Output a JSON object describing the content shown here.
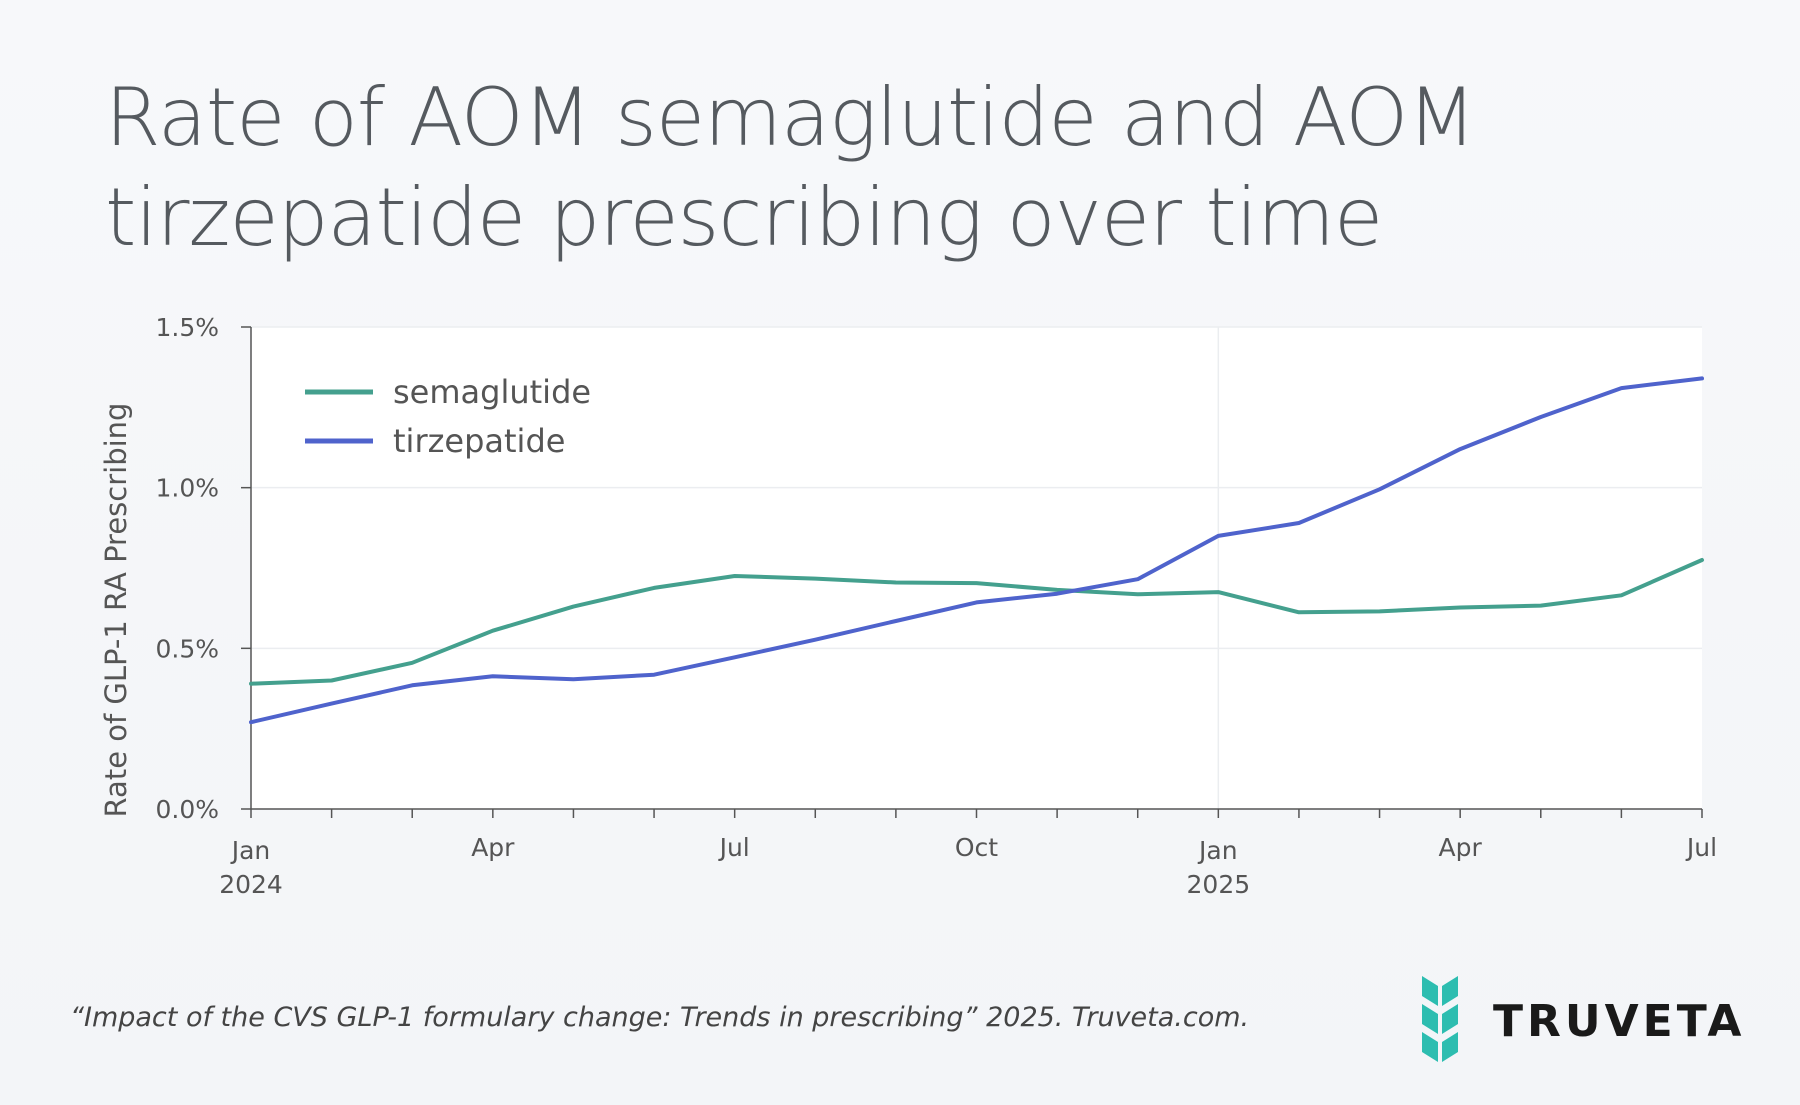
{
  "title_line1": "Rate of AOM semaglutide and AOM",
  "title_line2": "tirzepatide prescribing over time",
  "citation": "“Impact of the CVS GLP-1 formulary change: Trends in prescribing” 2025. Truveta.com.",
  "brand": {
    "name": "TRUVETA",
    "logo_icon": "truveta-chevron-logo-icon",
    "logo_color": "#2dbdb0"
  },
  "chart_data": {
    "type": "line",
    "title": "Rate of AOM semaglutide and AOM tirzepatide prescribing over time",
    "xlabel": "",
    "ylabel": "Rate of GLP-1 RA Prescribing",
    "x": [
      "2024-01",
      "2024-02",
      "2024-03",
      "2024-04",
      "2024-05",
      "2024-06",
      "2024-07",
      "2024-08",
      "2024-09",
      "2024-10",
      "2024-11",
      "2024-12",
      "2025-01",
      "2025-02",
      "2025-03",
      "2025-04",
      "2025-05",
      "2025-06",
      "2025-07"
    ],
    "x_tick_labels": [
      {
        "x": "2024-01",
        "label": "Jan",
        "sublabel": "2024"
      },
      {
        "x": "2024-04",
        "label": "Apr",
        "sublabel": ""
      },
      {
        "x": "2024-07",
        "label": "Jul",
        "sublabel": ""
      },
      {
        "x": "2024-10",
        "label": "Oct",
        "sublabel": ""
      },
      {
        "x": "2025-01",
        "label": "Jan",
        "sublabel": "2025"
      },
      {
        "x": "2025-04",
        "label": "Apr",
        "sublabel": ""
      },
      {
        "x": "2025-07",
        "label": "Jul",
        "sublabel": ""
      }
    ],
    "yticks": [
      0.0,
      0.5,
      1.0,
      1.5
    ],
    "ytick_labels": [
      "0.0%",
      "0.5%",
      "1.0%",
      "1.5%"
    ],
    "ylim": [
      0,
      1.5
    ],
    "y_unit": "%",
    "grid": true,
    "legend_position": "top-left",
    "series": [
      {
        "name": "semaglutide",
        "color": "#44a08e",
        "values": [
          0.39,
          0.4,
          0.455,
          0.555,
          0.63,
          0.688,
          0.725,
          0.717,
          0.705,
          0.703,
          0.682,
          0.668,
          0.675,
          0.612,
          0.615,
          0.627,
          0.633,
          0.665,
          0.775
        ]
      },
      {
        "name": "tirzepatide",
        "color": "#4f63cc",
        "values": [
          0.27,
          0.328,
          0.385,
          0.413,
          0.404,
          0.418,
          0.472,
          0.527,
          0.585,
          0.643,
          0.67,
          0.715,
          0.85,
          0.89,
          0.995,
          1.12,
          1.22,
          1.31,
          1.34
        ]
      }
    ]
  }
}
